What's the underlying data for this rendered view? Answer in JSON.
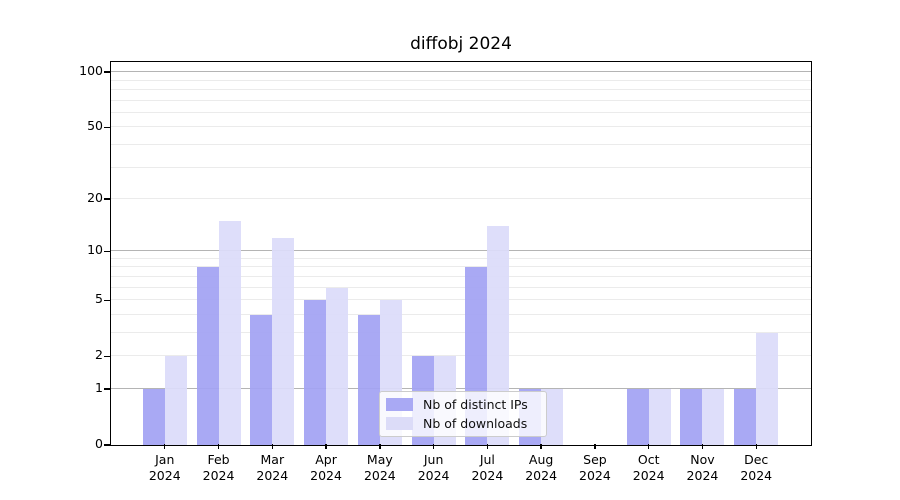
{
  "title": "diffobj 2024",
  "colors": {
    "ips_bar": "rgba(163,163,243,0.93)",
    "downloads_bar": "rgba(219,219,250,0.93)",
    "ips_solid": "#a9a9f4",
    "downloads_solid": "#dcdcf8",
    "grid_major": "#b4b4b4",
    "grid_minor": "#ebebeb",
    "axis": "#000000"
  },
  "legend": {
    "items": [
      {
        "label": "Nb of distinct IPs",
        "series_key": "ips"
      },
      {
        "label": "Nb of downloads",
        "series_key": "downloads"
      }
    ]
  },
  "chart_data": {
    "type": "bar",
    "title": "diffobj 2024",
    "categories": [
      "Jan 2024",
      "Feb 2024",
      "Mar 2024",
      "Apr 2024",
      "May 2024",
      "Jun 2024",
      "Jul 2024",
      "Aug 2024",
      "Sep 2024",
      "Oct 2024",
      "Nov 2024",
      "Dec 2024"
    ],
    "x_tick_line1": [
      "Jan",
      "Feb",
      "Mar",
      "Apr",
      "May",
      "Jun",
      "Jul",
      "Aug",
      "Sep",
      "Oct",
      "Nov",
      "Dec"
    ],
    "x_tick_line2": [
      "2024",
      "2024",
      "2024",
      "2024",
      "2024",
      "2024",
      "2024",
      "2024",
      "2024",
      "2024",
      "2024",
      "2024"
    ],
    "series": [
      {
        "name": "Nb of distinct IPs",
        "key": "ips",
        "values": [
          1,
          8,
          4,
          5,
          4,
          2,
          8,
          1,
          0,
          1,
          1,
          1
        ]
      },
      {
        "name": "Nb of downloads",
        "key": "downloads",
        "values": [
          2,
          15,
          12,
          6,
          5,
          2,
          14,
          1,
          0,
          1,
          1,
          3
        ]
      }
    ],
    "xlabel": "",
    "ylabel": "",
    "yscale": "log1p",
    "y_axis_top_value": 112,
    "y_ticks": [
      0,
      1,
      2,
      5,
      10,
      20,
      50,
      100
    ],
    "y_major_gridlines": [
      1,
      10,
      100
    ],
    "y_minor_gridlines": [
      2,
      3,
      4,
      5,
      6,
      7,
      8,
      9,
      20,
      30,
      40,
      50,
      60,
      70,
      80,
      90
    ],
    "grid": true,
    "legend_position": "inside-bottom-center"
  }
}
